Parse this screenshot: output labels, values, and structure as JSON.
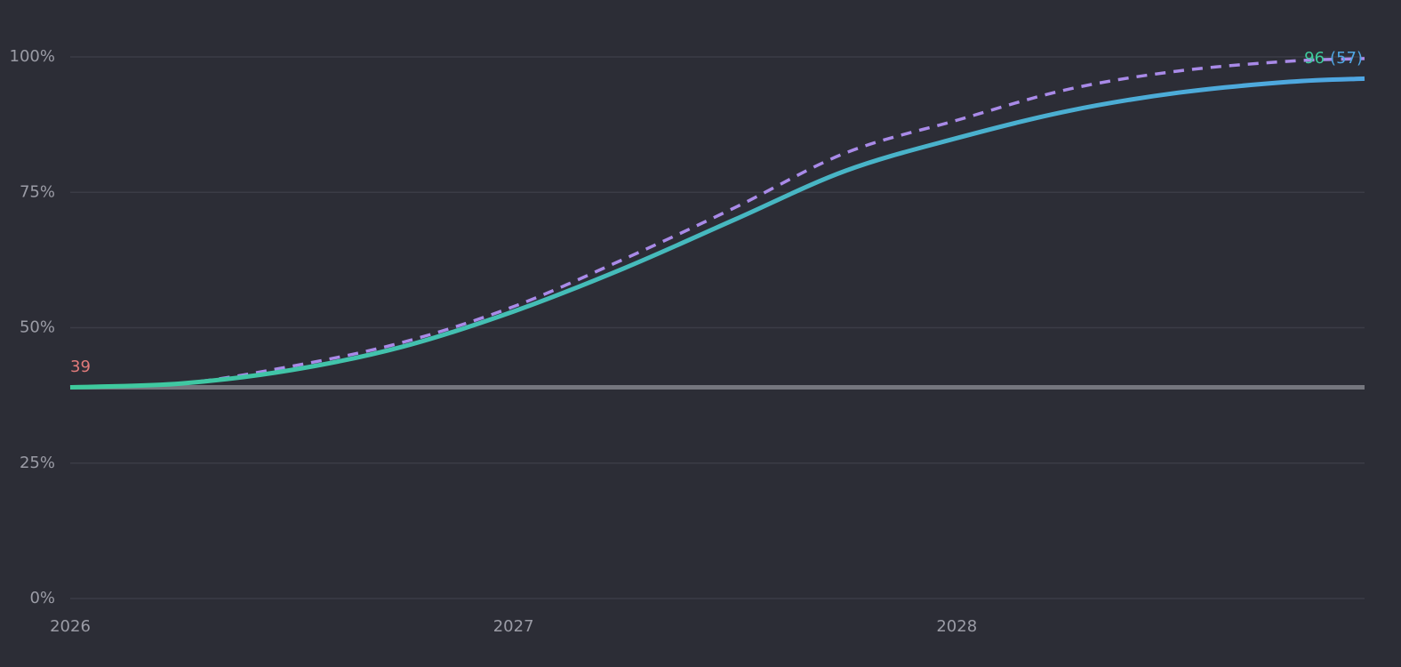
{
  "chart_data": {
    "type": "line",
    "x": [
      2026,
      2026.25,
      2026.5,
      2026.75,
      2027,
      2027.25,
      2027.5,
      2027.75,
      2028,
      2028.25,
      2028.5,
      2028.75,
      2028.92
    ],
    "series": [
      {
        "color": "#3ecb9c",
        "gradient_to": "#4fa6e3",
        "dashed": false,
        "values": [
          39,
          39.7,
          42.2,
          46.5,
          53,
          61,
          70,
          79,
          85,
          90,
          93.4,
          95.4,
          96
        ]
      },
      {
        "color": "#a98ae8",
        "dashed": true,
        "values": [
          39,
          39.7,
          42.9,
          47.3,
          53.9,
          62.7,
          72.2,
          82.3,
          88.3,
          94,
          97.4,
          99.2,
          99.7
        ]
      },
      {
        "color": "#75767e",
        "dashed": false,
        "values": [
          39,
          null,
          null,
          null,
          null,
          null,
          null,
          null,
          null,
          null,
          null,
          null,
          39
        ]
      }
    ],
    "xlim": [
      2026,
      2028.92
    ],
    "xticks": [
      2026,
      2027,
      2028
    ],
    "ylim": [
      0,
      100
    ],
    "yticks": [
      {
        "value": 0,
        "label": "0%"
      },
      {
        "value": 25,
        "label": "25%"
      },
      {
        "value": 50,
        "label": "50%"
      },
      {
        "value": 75,
        "label": "75%"
      },
      {
        "value": 100,
        "label": "100%"
      }
    ],
    "grid": true,
    "annotations": [
      {
        "text": "39",
        "color": "#e07a7a"
      },
      {
        "text": "96",
        "color": "#3ecb9c"
      },
      {
        "text": "(57)",
        "color": "#4fa6e3"
      }
    ]
  }
}
